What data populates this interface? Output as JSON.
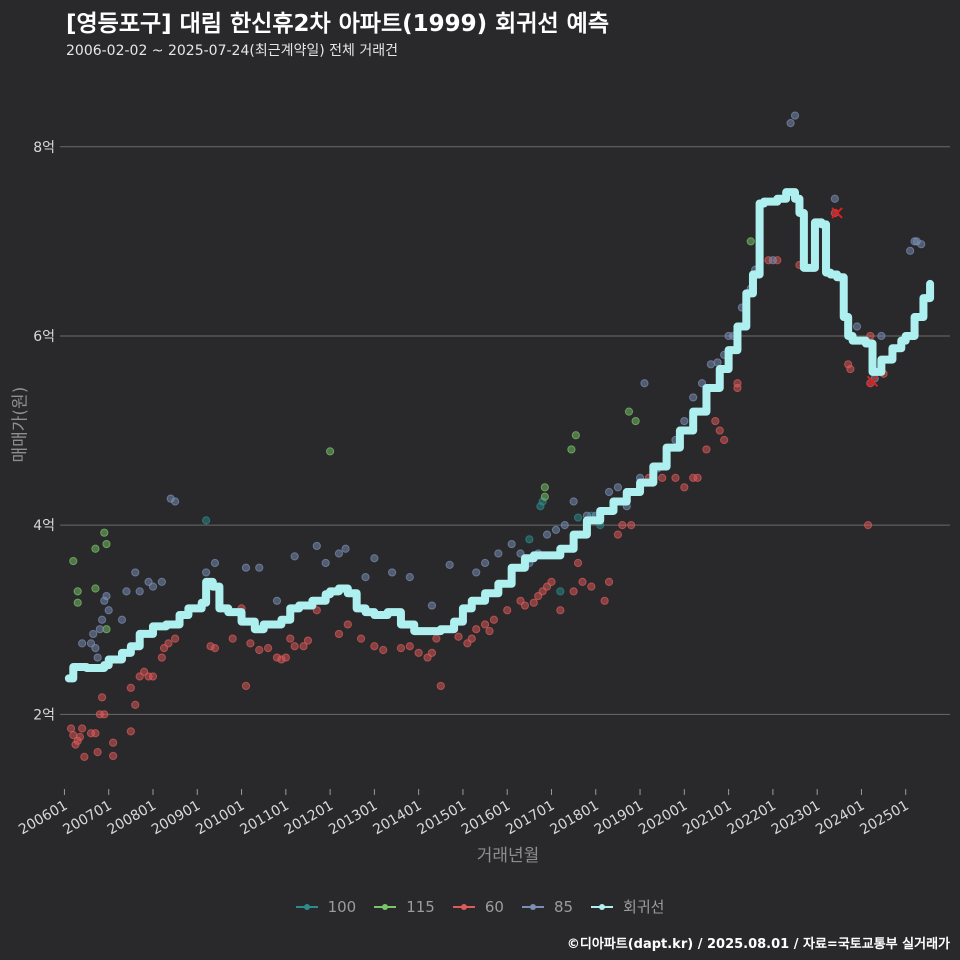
{
  "header": {
    "title": "[영등포구] 대림 한신휴2차 아파트(1999) 회귀선 예측",
    "subtitle": "2006-02-02 ~ 2025-07-24(최근계약일) 전체 거래건"
  },
  "caption": "©디아파트(dapt.kr) / 2025.08.01 / 자료=국토교통부 실거래가",
  "colors": {
    "background": "#29292b",
    "grid": "#6a6a6a",
    "s100": "#2e8b8b",
    "s115": "#7ac46a",
    "s60": "#e05a5a",
    "s85": "#7b8fb5",
    "regression": "#aef0f0"
  },
  "chart_data": {
    "type": "scatter",
    "title": "[영등포구] 대림 한신휴2차 아파트(1999) 회귀선 예측",
    "xlabel": "거래년월",
    "ylabel": "매매가(원)",
    "xlim": [
      2005.9,
      2026.0
    ],
    "ylim": [
      1.2,
      8.6
    ],
    "y_unit": "억",
    "y_ticks": [
      2,
      4,
      6,
      8
    ],
    "y_tick_labels": [
      "2억",
      "4억",
      "6억",
      "8억"
    ],
    "x_ticks": [
      2006,
      2007,
      2008,
      2009,
      2010,
      2011,
      2012,
      2013,
      2014,
      2015,
      2016,
      2017,
      2018,
      2019,
      2020,
      2021,
      2022,
      2023,
      2024,
      2025
    ],
    "x_tick_labels": [
      "200601",
      "200701",
      "200801",
      "200901",
      "201001",
      "201101",
      "201201",
      "201301",
      "201401",
      "201501",
      "201601",
      "201701",
      "201801",
      "201901",
      "202001",
      "202101",
      "202201",
      "202301",
      "202401",
      "202501"
    ],
    "grid": true,
    "legend_position": "bottom",
    "series": [
      {
        "name": "100",
        "color_key": "s100",
        "points": [
          [
            2016.75,
            4.2
          ],
          [
            2016.8,
            4.25
          ],
          [
            2017.6,
            4.08
          ],
          [
            2017.9,
            4.1
          ],
          [
            2009.2,
            4.05
          ],
          [
            2016.5,
            3.85
          ],
          [
            2017.2,
            3.3
          ],
          [
            2018.1,
            4.0
          ]
        ]
      },
      {
        "name": "115",
        "color_key": "s115",
        "points": [
          [
            2006.2,
            3.62
          ],
          [
            2006.3,
            3.3
          ],
          [
            2006.3,
            3.18
          ],
          [
            2006.7,
            3.75
          ],
          [
            2006.7,
            3.33
          ],
          [
            2006.9,
            3.92
          ],
          [
            2006.95,
            3.8
          ],
          [
            2006.95,
            2.9
          ],
          [
            2012.0,
            4.78
          ],
          [
            2016.85,
            4.4
          ],
          [
            2016.85,
            4.3
          ],
          [
            2017.45,
            4.8
          ],
          [
            2017.55,
            4.95
          ],
          [
            2018.75,
            5.2
          ],
          [
            2018.9,
            5.1
          ],
          [
            2021.5,
            7.0
          ]
        ]
      },
      {
        "name": "60",
        "color_key": "s60",
        "points": [
          [
            2006.15,
            1.85
          ],
          [
            2006.2,
            1.78
          ],
          [
            2006.25,
            1.68
          ],
          [
            2006.3,
            1.72
          ],
          [
            2006.35,
            1.76
          ],
          [
            2006.4,
            1.85
          ],
          [
            2006.45,
            1.55
          ],
          [
            2006.6,
            1.8
          ],
          [
            2006.7,
            1.8
          ],
          [
            2006.75,
            1.6
          ],
          [
            2006.8,
            2.0
          ],
          [
            2006.85,
            2.18
          ],
          [
            2006.9,
            2.0
          ],
          [
            2007.1,
            1.7
          ],
          [
            2007.1,
            1.56
          ],
          [
            2007.5,
            1.82
          ],
          [
            2007.5,
            2.28
          ],
          [
            2007.6,
            2.1
          ],
          [
            2007.7,
            2.4
          ],
          [
            2007.8,
            2.45
          ],
          [
            2007.9,
            2.4
          ],
          [
            2008.0,
            2.4
          ],
          [
            2008.2,
            2.6
          ],
          [
            2008.25,
            2.7
          ],
          [
            2008.35,
            2.75
          ],
          [
            2008.5,
            2.8
          ],
          [
            2009.3,
            2.72
          ],
          [
            2009.4,
            2.7
          ],
          [
            2009.8,
            2.8
          ],
          [
            2010.0,
            3.12
          ],
          [
            2010.1,
            2.3
          ],
          [
            2010.2,
            2.75
          ],
          [
            2010.4,
            2.68
          ],
          [
            2010.6,
            2.7
          ],
          [
            2010.8,
            2.6
          ],
          [
            2010.9,
            2.58
          ],
          [
            2011.0,
            2.6
          ],
          [
            2011.1,
            2.8
          ],
          [
            2011.2,
            2.72
          ],
          [
            2011.4,
            2.72
          ],
          [
            2011.5,
            2.78
          ],
          [
            2011.7,
            3.1
          ],
          [
            2012.2,
            2.85
          ],
          [
            2012.4,
            2.95
          ],
          [
            2012.7,
            2.8
          ],
          [
            2013.0,
            2.72
          ],
          [
            2013.2,
            2.68
          ],
          [
            2013.6,
            2.7
          ],
          [
            2013.8,
            2.72
          ],
          [
            2014.0,
            2.65
          ],
          [
            2014.2,
            2.6
          ],
          [
            2014.3,
            2.65
          ],
          [
            2014.4,
            2.8
          ],
          [
            2014.5,
            2.3
          ],
          [
            2014.9,
            2.82
          ],
          [
            2015.1,
            2.75
          ],
          [
            2015.2,
            2.8
          ],
          [
            2015.3,
            2.9
          ],
          [
            2015.5,
            2.95
          ],
          [
            2015.6,
            2.88
          ],
          [
            2015.7,
            3.0
          ],
          [
            2016.0,
            3.1
          ],
          [
            2016.3,
            3.2
          ],
          [
            2016.4,
            3.15
          ],
          [
            2016.6,
            3.18
          ],
          [
            2016.7,
            3.25
          ],
          [
            2016.8,
            3.3
          ],
          [
            2016.9,
            3.35
          ],
          [
            2017.0,
            3.4
          ],
          [
            2017.2,
            3.1
          ],
          [
            2017.5,
            3.3
          ],
          [
            2017.6,
            3.6
          ],
          [
            2017.7,
            3.4
          ],
          [
            2017.9,
            3.35
          ],
          [
            2018.2,
            3.2
          ],
          [
            2018.3,
            3.4
          ],
          [
            2018.5,
            3.9
          ],
          [
            2018.6,
            4.0
          ],
          [
            2018.8,
            4.0
          ],
          [
            2019.2,
            4.5
          ],
          [
            2019.5,
            4.5
          ],
          [
            2019.8,
            4.5
          ],
          [
            2020.0,
            4.4
          ],
          [
            2020.2,
            4.5
          ],
          [
            2020.3,
            4.5
          ],
          [
            2020.5,
            4.8
          ],
          [
            2020.7,
            5.1
          ],
          [
            2020.8,
            5.0
          ],
          [
            2020.9,
            4.9
          ],
          [
            2021.2,
            5.5
          ],
          [
            2021.2,
            5.45
          ],
          [
            2021.9,
            6.8
          ],
          [
            2022.1,
            6.8
          ],
          [
            2022.6,
            6.75
          ],
          [
            2023.4,
            7.3
          ],
          [
            2023.7,
            5.7
          ],
          [
            2023.75,
            5.65
          ],
          [
            2024.2,
            6.0
          ],
          [
            2024.2,
            5.5
          ],
          [
            2024.15,
            4.0
          ],
          [
            2024.5,
            5.6
          ]
        ]
      },
      {
        "name": "85",
        "color_key": "s85",
        "points": [
          [
            2006.4,
            2.75
          ],
          [
            2006.6,
            2.75
          ],
          [
            2006.65,
            2.85
          ],
          [
            2006.7,
            2.7
          ],
          [
            2006.75,
            2.6
          ],
          [
            2006.8,
            2.9
          ],
          [
            2006.85,
            3.0
          ],
          [
            2006.9,
            3.2
          ],
          [
            2006.95,
            3.25
          ],
          [
            2007.0,
            3.1
          ],
          [
            2007.3,
            3.0
          ],
          [
            2007.4,
            3.3
          ],
          [
            2007.6,
            3.5
          ],
          [
            2007.7,
            3.3
          ],
          [
            2007.9,
            3.4
          ],
          [
            2008.0,
            3.35
          ],
          [
            2008.2,
            3.4
          ],
          [
            2008.4,
            4.28
          ],
          [
            2008.5,
            4.25
          ],
          [
            2008.6,
            3.0
          ],
          [
            2009.2,
            3.5
          ],
          [
            2009.4,
            3.6
          ],
          [
            2010.1,
            3.55
          ],
          [
            2010.4,
            3.55
          ],
          [
            2010.8,
            3.2
          ],
          [
            2011.2,
            3.67
          ],
          [
            2011.7,
            3.78
          ],
          [
            2011.9,
            3.6
          ],
          [
            2012.2,
            3.7
          ],
          [
            2012.35,
            3.75
          ],
          [
            2012.8,
            3.45
          ],
          [
            2013.0,
            3.65
          ],
          [
            2013.4,
            3.5
          ],
          [
            2013.8,
            3.45
          ],
          [
            2014.3,
            3.15
          ],
          [
            2014.7,
            3.58
          ],
          [
            2015.3,
            3.5
          ],
          [
            2015.5,
            3.6
          ],
          [
            2015.8,
            3.7
          ],
          [
            2016.1,
            3.8
          ],
          [
            2016.3,
            3.7
          ],
          [
            2016.5,
            3.6
          ],
          [
            2016.7,
            3.7
          ],
          [
            2016.9,
            3.9
          ],
          [
            2017.1,
            3.95
          ],
          [
            2017.3,
            4.0
          ],
          [
            2017.5,
            4.25
          ],
          [
            2017.8,
            4.1
          ],
          [
            2018.0,
            4.1
          ],
          [
            2018.3,
            4.35
          ],
          [
            2018.5,
            4.4
          ],
          [
            2018.7,
            4.2
          ],
          [
            2019.0,
            4.5
          ],
          [
            2019.1,
            5.5
          ],
          [
            2019.4,
            4.6
          ],
          [
            2019.6,
            4.7
          ],
          [
            2019.8,
            4.9
          ],
          [
            2020.0,
            5.1
          ],
          [
            2020.2,
            5.35
          ],
          [
            2020.4,
            5.5
          ],
          [
            2020.6,
            5.7
          ],
          [
            2020.75,
            5.72
          ],
          [
            2020.9,
            5.8
          ],
          [
            2021.0,
            6.0
          ],
          [
            2021.1,
            6.0
          ],
          [
            2021.3,
            6.3
          ],
          [
            2021.5,
            6.5
          ],
          [
            2021.6,
            6.7
          ],
          [
            2022.0,
            6.8
          ],
          [
            2022.4,
            8.25
          ],
          [
            2022.5,
            8.33
          ],
          [
            2023.2,
            6.7
          ],
          [
            2023.4,
            7.45
          ],
          [
            2023.9,
            6.1
          ],
          [
            2024.3,
            5.55
          ],
          [
            2024.45,
            6.0
          ],
          [
            2025.1,
            6.9
          ],
          [
            2025.2,
            7.0
          ],
          [
            2025.25,
            7.0
          ],
          [
            2025.35,
            6.97
          ]
        ]
      }
    ],
    "marked_points": [
      [
        2023.45,
        7.3
      ],
      [
        2024.25,
        5.52
      ]
    ],
    "regression": {
      "name": "회귀선",
      "color_key": "regression",
      "x": [
        2006.1,
        2006.2,
        2006.5,
        2006.9,
        2007.0,
        2007.3,
        2007.5,
        2007.7,
        2008.0,
        2008.3,
        2008.6,
        2008.8,
        2009.1,
        2009.2,
        2009.35,
        2009.5,
        2009.7,
        2010.0,
        2010.3,
        2010.5,
        2010.9,
        2011.1,
        2011.3,
        2011.6,
        2011.9,
        2012.0,
        2012.2,
        2012.4,
        2012.6,
        2012.8,
        2013.0,
        2013.3,
        2013.6,
        2013.9,
        2014.2,
        2014.5,
        2014.8,
        2015.0,
        2015.2,
        2015.5,
        2015.8,
        2016.1,
        2016.4,
        2016.6,
        2016.9,
        2017.2,
        2017.5,
        2017.8,
        2018.1,
        2018.4,
        2018.7,
        2019.0,
        2019.3,
        2019.6,
        2019.9,
        2020.2,
        2020.5,
        2020.8,
        2021.0,
        2021.2,
        2021.4,
        2021.55,
        2021.7,
        2021.8,
        2022.1,
        2022.3,
        2022.5,
        2022.6,
        2022.7,
        2022.9,
        2022.95,
        2023.1,
        2023.2,
        2023.3,
        2023.4,
        2023.45,
        2023.6,
        2023.7,
        2023.8,
        2024.1,
        2024.25,
        2024.45,
        2024.7,
        2024.9,
        2025.0,
        2025.2,
        2025.4,
        2025.55
      ],
      "values": [
        2.38,
        2.5,
        2.49,
        2.52,
        2.58,
        2.65,
        2.72,
        2.85,
        2.93,
        2.95,
        3.05,
        3.12,
        3.18,
        3.4,
        3.35,
        3.12,
        3.08,
        2.98,
        2.9,
        2.95,
        3.0,
        3.12,
        3.15,
        3.2,
        3.27,
        3.3,
        3.33,
        3.28,
        3.12,
        3.08,
        3.05,
        3.08,
        2.95,
        2.88,
        2.88,
        2.9,
        2.98,
        3.12,
        3.2,
        3.28,
        3.38,
        3.55,
        3.65,
        3.68,
        3.68,
        3.75,
        3.9,
        4.05,
        4.15,
        4.25,
        4.35,
        4.45,
        4.62,
        4.82,
        5.0,
        5.2,
        5.45,
        5.65,
        5.85,
        6.1,
        6.45,
        6.65,
        7.4,
        7.42,
        7.45,
        7.52,
        7.45,
        7.3,
        6.72,
        6.72,
        7.2,
        7.18,
        6.67,
        6.65,
        6.65,
        6.62,
        6.2,
        6.0,
        5.95,
        5.92,
        5.62,
        5.75,
        5.87,
        5.95,
        6.0,
        6.2,
        6.4,
        6.55
      ]
    }
  },
  "legend": [
    {
      "label": "100",
      "color_key": "s100"
    },
    {
      "label": "115",
      "color_key": "s115"
    },
    {
      "label": "60",
      "color_key": "s60"
    },
    {
      "label": "85",
      "color_key": "s85"
    },
    {
      "label": "회귀선",
      "color_key": "regression"
    }
  ]
}
